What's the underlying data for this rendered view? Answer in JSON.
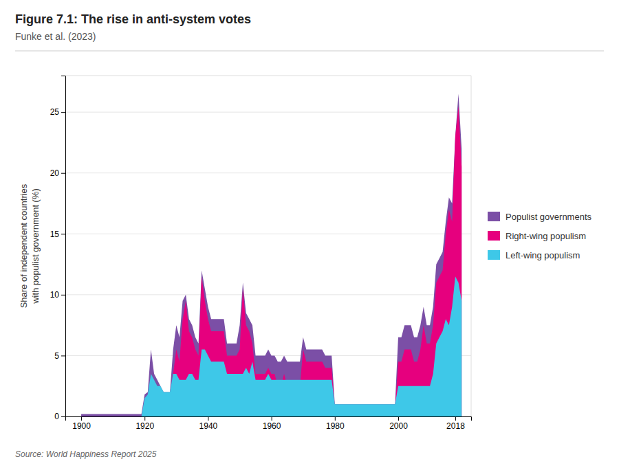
{
  "chart_data": {
    "type": "area",
    "title": "Figure 7.1: The rise in anti-system votes",
    "subtitle": "Funke et al. (2023)",
    "source": "Source: World Happiness Report 2025",
    "ylabel": "Share of independent countries\nwith populist government (%)",
    "xlim": [
      1895,
      2023
    ],
    "xticks": [
      1900,
      1920,
      1940,
      1960,
      1980,
      2000,
      2018
    ],
    "ylim": [
      0,
      28
    ],
    "yticks": [
      0,
      5,
      10,
      15,
      20,
      25
    ],
    "grid": true,
    "legend": "right",
    "x": [
      1900,
      1901,
      1902,
      1903,
      1904,
      1905,
      1906,
      1907,
      1908,
      1909,
      1910,
      1911,
      1912,
      1913,
      1914,
      1915,
      1916,
      1917,
      1918,
      1919,
      1920,
      1921,
      1922,
      1923,
      1924,
      1925,
      1926,
      1927,
      1928,
      1929,
      1930,
      1931,
      1932,
      1933,
      1934,
      1935,
      1936,
      1937,
      1938,
      1939,
      1940,
      1941,
      1942,
      1943,
      1944,
      1945,
      1946,
      1947,
      1948,
      1949,
      1950,
      1951,
      1952,
      1953,
      1954,
      1955,
      1956,
      1957,
      1958,
      1959,
      1960,
      1961,
      1962,
      1963,
      1964,
      1965,
      1966,
      1967,
      1968,
      1969,
      1970,
      1971,
      1972,
      1973,
      1974,
      1975,
      1976,
      1977,
      1978,
      1979,
      1980,
      1981,
      1982,
      1983,
      1984,
      1985,
      1986,
      1987,
      1988,
      1989,
      1990,
      1991,
      1992,
      1993,
      1994,
      1995,
      1996,
      1997,
      1998,
      1999,
      2000,
      2001,
      2002,
      2003,
      2004,
      2005,
      2006,
      2007,
      2008,
      2009,
      2010,
      2011,
      2012,
      2013,
      2014,
      2015,
      2016,
      2017,
      2018,
      2019,
      2020
    ],
    "series": [
      {
        "name": "Populist governments",
        "color": "#7b4fa6",
        "values": [
          0.2,
          0.2,
          0.2,
          0.2,
          0.2,
          0.2,
          0.2,
          0.2,
          0.2,
          0.2,
          0.2,
          0.2,
          0.2,
          0.2,
          0.2,
          0.2,
          0.2,
          0.2,
          0.2,
          0.2,
          1.8,
          2.0,
          5.5,
          3.5,
          3.0,
          2.5,
          2.0,
          2.0,
          2.0,
          5.5,
          7.5,
          6.5,
          9.5,
          10.0,
          8.0,
          7.5,
          6.5,
          6.0,
          12.0,
          10.5,
          9.0,
          8.0,
          8.0,
          8.0,
          8.0,
          8.0,
          6.0,
          6.0,
          6.0,
          6.0,
          7.5,
          11.0,
          8.5,
          8.0,
          7.5,
          5.0,
          5.0,
          5.0,
          5.0,
          5.5,
          5.0,
          5.0,
          4.5,
          4.5,
          5.0,
          4.5,
          4.5,
          4.5,
          4.5,
          4.5,
          6.5,
          5.5,
          5.5,
          5.5,
          5.5,
          5.5,
          5.5,
          5.0,
          5.0,
          5.0,
          1.0,
          1.0,
          1.0,
          1.0,
          1.0,
          1.0,
          1.0,
          1.0,
          1.0,
          1.0,
          1.0,
          1.0,
          1.0,
          1.0,
          1.0,
          1.0,
          1.0,
          1.0,
          1.0,
          1.0,
          6.5,
          6.5,
          7.5,
          7.5,
          7.5,
          6.5,
          6.5,
          7.5,
          9.0,
          7.5,
          7.5,
          9.0,
          12.5,
          13.0,
          13.5,
          16.0,
          18.0,
          17.5,
          23.0,
          26.5,
          22.0
        ]
      },
      {
        "name": "Right-wing populism",
        "color": "#e6007e",
        "values": [
          0,
          0,
          0,
          0,
          0,
          0,
          0,
          0,
          0,
          0,
          0,
          0,
          0,
          0,
          0,
          0,
          0,
          0,
          0,
          0,
          0.5,
          0.5,
          3.5,
          2.5,
          1.5,
          1.2,
          0.8,
          0.8,
          0.8,
          3.5,
          5.5,
          4.5,
          8.0,
          9.5,
          7.0,
          6.5,
          5.5,
          5.0,
          11.5,
          9.5,
          8.0,
          7.0,
          7.0,
          7.0,
          7.0,
          7.0,
          5.0,
          5.0,
          5.0,
          5.0,
          5.5,
          10.5,
          7.5,
          7.0,
          6.0,
          3.5,
          3.5,
          3.5,
          3.5,
          4.0,
          3.5,
          3.5,
          2.5,
          2.5,
          3.5,
          2.5,
          2.5,
          2.5,
          2.5,
          2.5,
          5.5,
          4.5,
          4.5,
          4.5,
          4.5,
          4.5,
          4.5,
          4.0,
          4.0,
          4.0,
          0.7,
          0.7,
          0.7,
          0.7,
          0.7,
          0.7,
          0.7,
          0.7,
          0.7,
          0.7,
          0.7,
          0.7,
          0.7,
          0.7,
          0.7,
          0.7,
          0.7,
          0.7,
          0.7,
          0.7,
          4.5,
          4.5,
          5.5,
          5.5,
          5.5,
          4.5,
          4.5,
          5.5,
          7.5,
          6.0,
          6.0,
          7.5,
          11.0,
          11.5,
          12.0,
          15.0,
          17.0,
          16.0,
          23.0,
          25.5,
          20.5
        ]
      },
      {
        "name": "Left-wing populism",
        "color": "#3ec8e8",
        "values": [
          0,
          0,
          0,
          0,
          0,
          0,
          0,
          0,
          0,
          0,
          0,
          0,
          0,
          0,
          0,
          0,
          0,
          0,
          0,
          0,
          1.5,
          1.8,
          3.5,
          3.0,
          2.5,
          2.5,
          2.0,
          2.0,
          2.0,
          3.5,
          3.5,
          3.0,
          3.0,
          3.0,
          3.5,
          3.5,
          3.0,
          3.0,
          5.5,
          5.5,
          5.0,
          4.5,
          4.5,
          4.5,
          4.5,
          4.5,
          3.5,
          3.5,
          3.5,
          3.5,
          3.5,
          3.5,
          4.0,
          3.5,
          4.5,
          3.0,
          3.0,
          3.0,
          3.0,
          3.5,
          3.0,
          3.0,
          3.0,
          3.0,
          3.0,
          3.0,
          3.0,
          3.0,
          3.0,
          3.0,
          3.0,
          3.0,
          3.0,
          3.0,
          3.0,
          3.0,
          3.0,
          3.0,
          3.0,
          3.0,
          1.0,
          1.0,
          1.0,
          1.0,
          1.0,
          1.0,
          1.0,
          1.0,
          1.0,
          1.0,
          1.0,
          1.0,
          1.0,
          1.0,
          1.0,
          1.0,
          1.0,
          1.0,
          1.0,
          1.0,
          2.5,
          2.5,
          2.5,
          2.5,
          2.5,
          2.5,
          2.5,
          2.5,
          2.5,
          2.5,
          2.5,
          3.5,
          6.0,
          6.5,
          7.0,
          8.0,
          7.5,
          9.0,
          11.5,
          11.0,
          9.5
        ]
      }
    ]
  }
}
